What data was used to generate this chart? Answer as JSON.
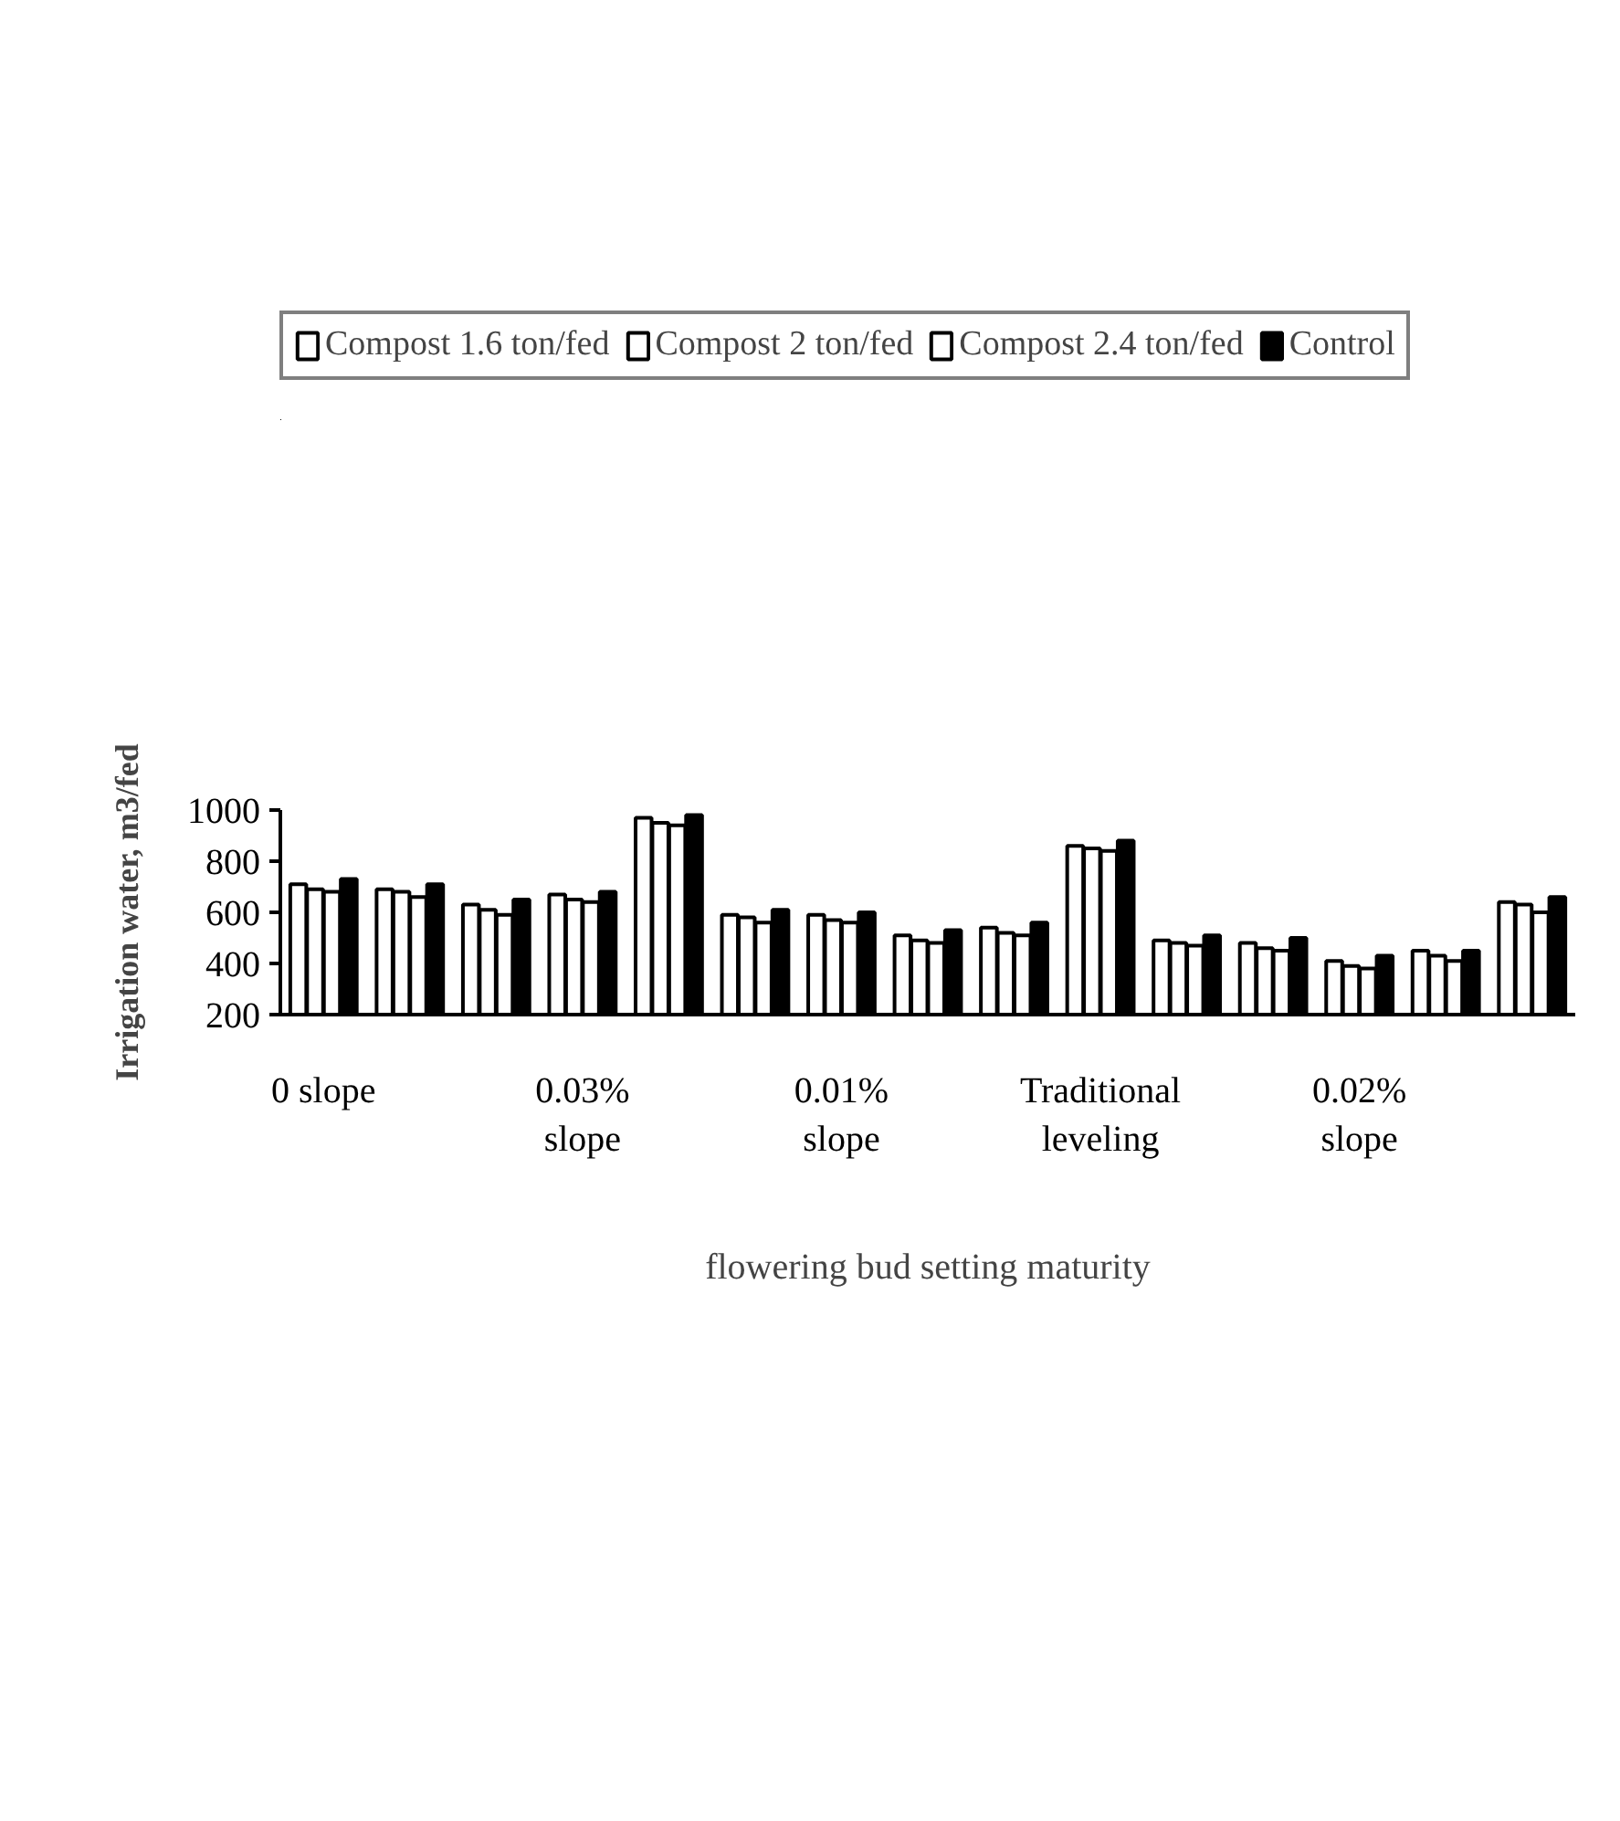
{
  "chart_data": {
    "type": "bar",
    "xlabel": "flowering bud setting maturity",
    "ylabel": "Irrigation water, m3/fed",
    "categories": [
      "0 slope",
      null,
      null,
      "0.03%\nslope",
      null,
      null,
      "0.01%\nslope",
      null,
      null,
      "Traditional\nleveling",
      null,
      null,
      "0.02%\nslope",
      null,
      null
    ],
    "series": [
      {
        "name": "Compost 1.6 ton/fed",
        "color": "#ffffff",
        "values": [
          710,
          690,
          630,
          670,
          970,
          590,
          590,
          510,
          540,
          860,
          490,
          480,
          410,
          450,
          640
        ]
      },
      {
        "name": "Compost 2 ton/fed",
        "color": "#ffffff",
        "values": [
          690,
          680,
          610,
          650,
          950,
          580,
          570,
          490,
          520,
          850,
          480,
          460,
          390,
          430,
          630
        ]
      },
      {
        "name": "Compost 2.4 ton/fed",
        "color": "#ffffff",
        "values": [
          680,
          660,
          590,
          640,
          940,
          560,
          560,
          480,
          510,
          840,
          470,
          450,
          380,
          410,
          600
        ]
      },
      {
        "name": "Control",
        "color": "#000000",
        "values": [
          730,
          710,
          650,
          680,
          980,
          610,
          600,
          530,
          560,
          880,
          510,
          500,
          430,
          450,
          660
        ]
      }
    ],
    "ylim": [
      200,
      1000
    ],
    "yticks": [
      200,
      400,
      600,
      800,
      1000
    ],
    "grid": false,
    "legend": "top"
  }
}
